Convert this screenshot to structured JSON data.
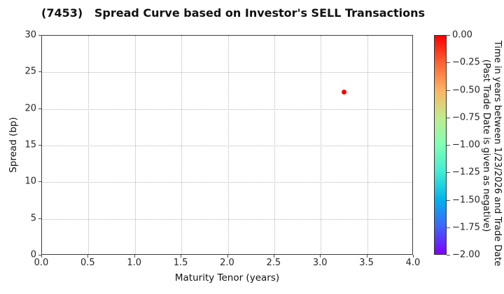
{
  "chart_data": {
    "type": "scatter",
    "title": "(7453)   Spread Curve based on Investor's SELL Transactions",
    "xlabel": "Maturity Tenor (years)",
    "ylabel": "Spread (bp)",
    "xlim": [
      0.0,
      4.0
    ],
    "ylim": [
      0,
      30
    ],
    "xticks": [
      "0.0",
      "0.5",
      "1.0",
      "1.5",
      "2.0",
      "2.5",
      "3.0",
      "3.5",
      "4.0"
    ],
    "yticks": [
      "0",
      "5",
      "10",
      "15",
      "20",
      "25",
      "30"
    ],
    "grid": true,
    "grid_style": "dotted",
    "legend": "none",
    "points": [
      {
        "x": 3.25,
        "y": 22.3,
        "color": "#ff0000",
        "time_value": 0.0
      }
    ],
    "colorbar": {
      "label_line1": "Time in years between 1/23/2026 and Trade Date",
      "label_line2": "(Past Trade Date is given as negative)",
      "ticks": [
        "0.00",
        "−0.25",
        "−0.50",
        "−0.75",
        "−1.00",
        "−1.25",
        "−1.50",
        "−1.75",
        "−2.00"
      ],
      "value_top": 0.0,
      "value_bottom": -2.0,
      "colormap": "rainbow",
      "gradient_top_to_bottom": [
        "#ff0000",
        "#ff6232",
        "#ffb462",
        "#bfec8e",
        "#80ffb4",
        "#40ecd4",
        "#00b4ec",
        "#4062fa",
        "#8000ff"
      ]
    }
  }
}
